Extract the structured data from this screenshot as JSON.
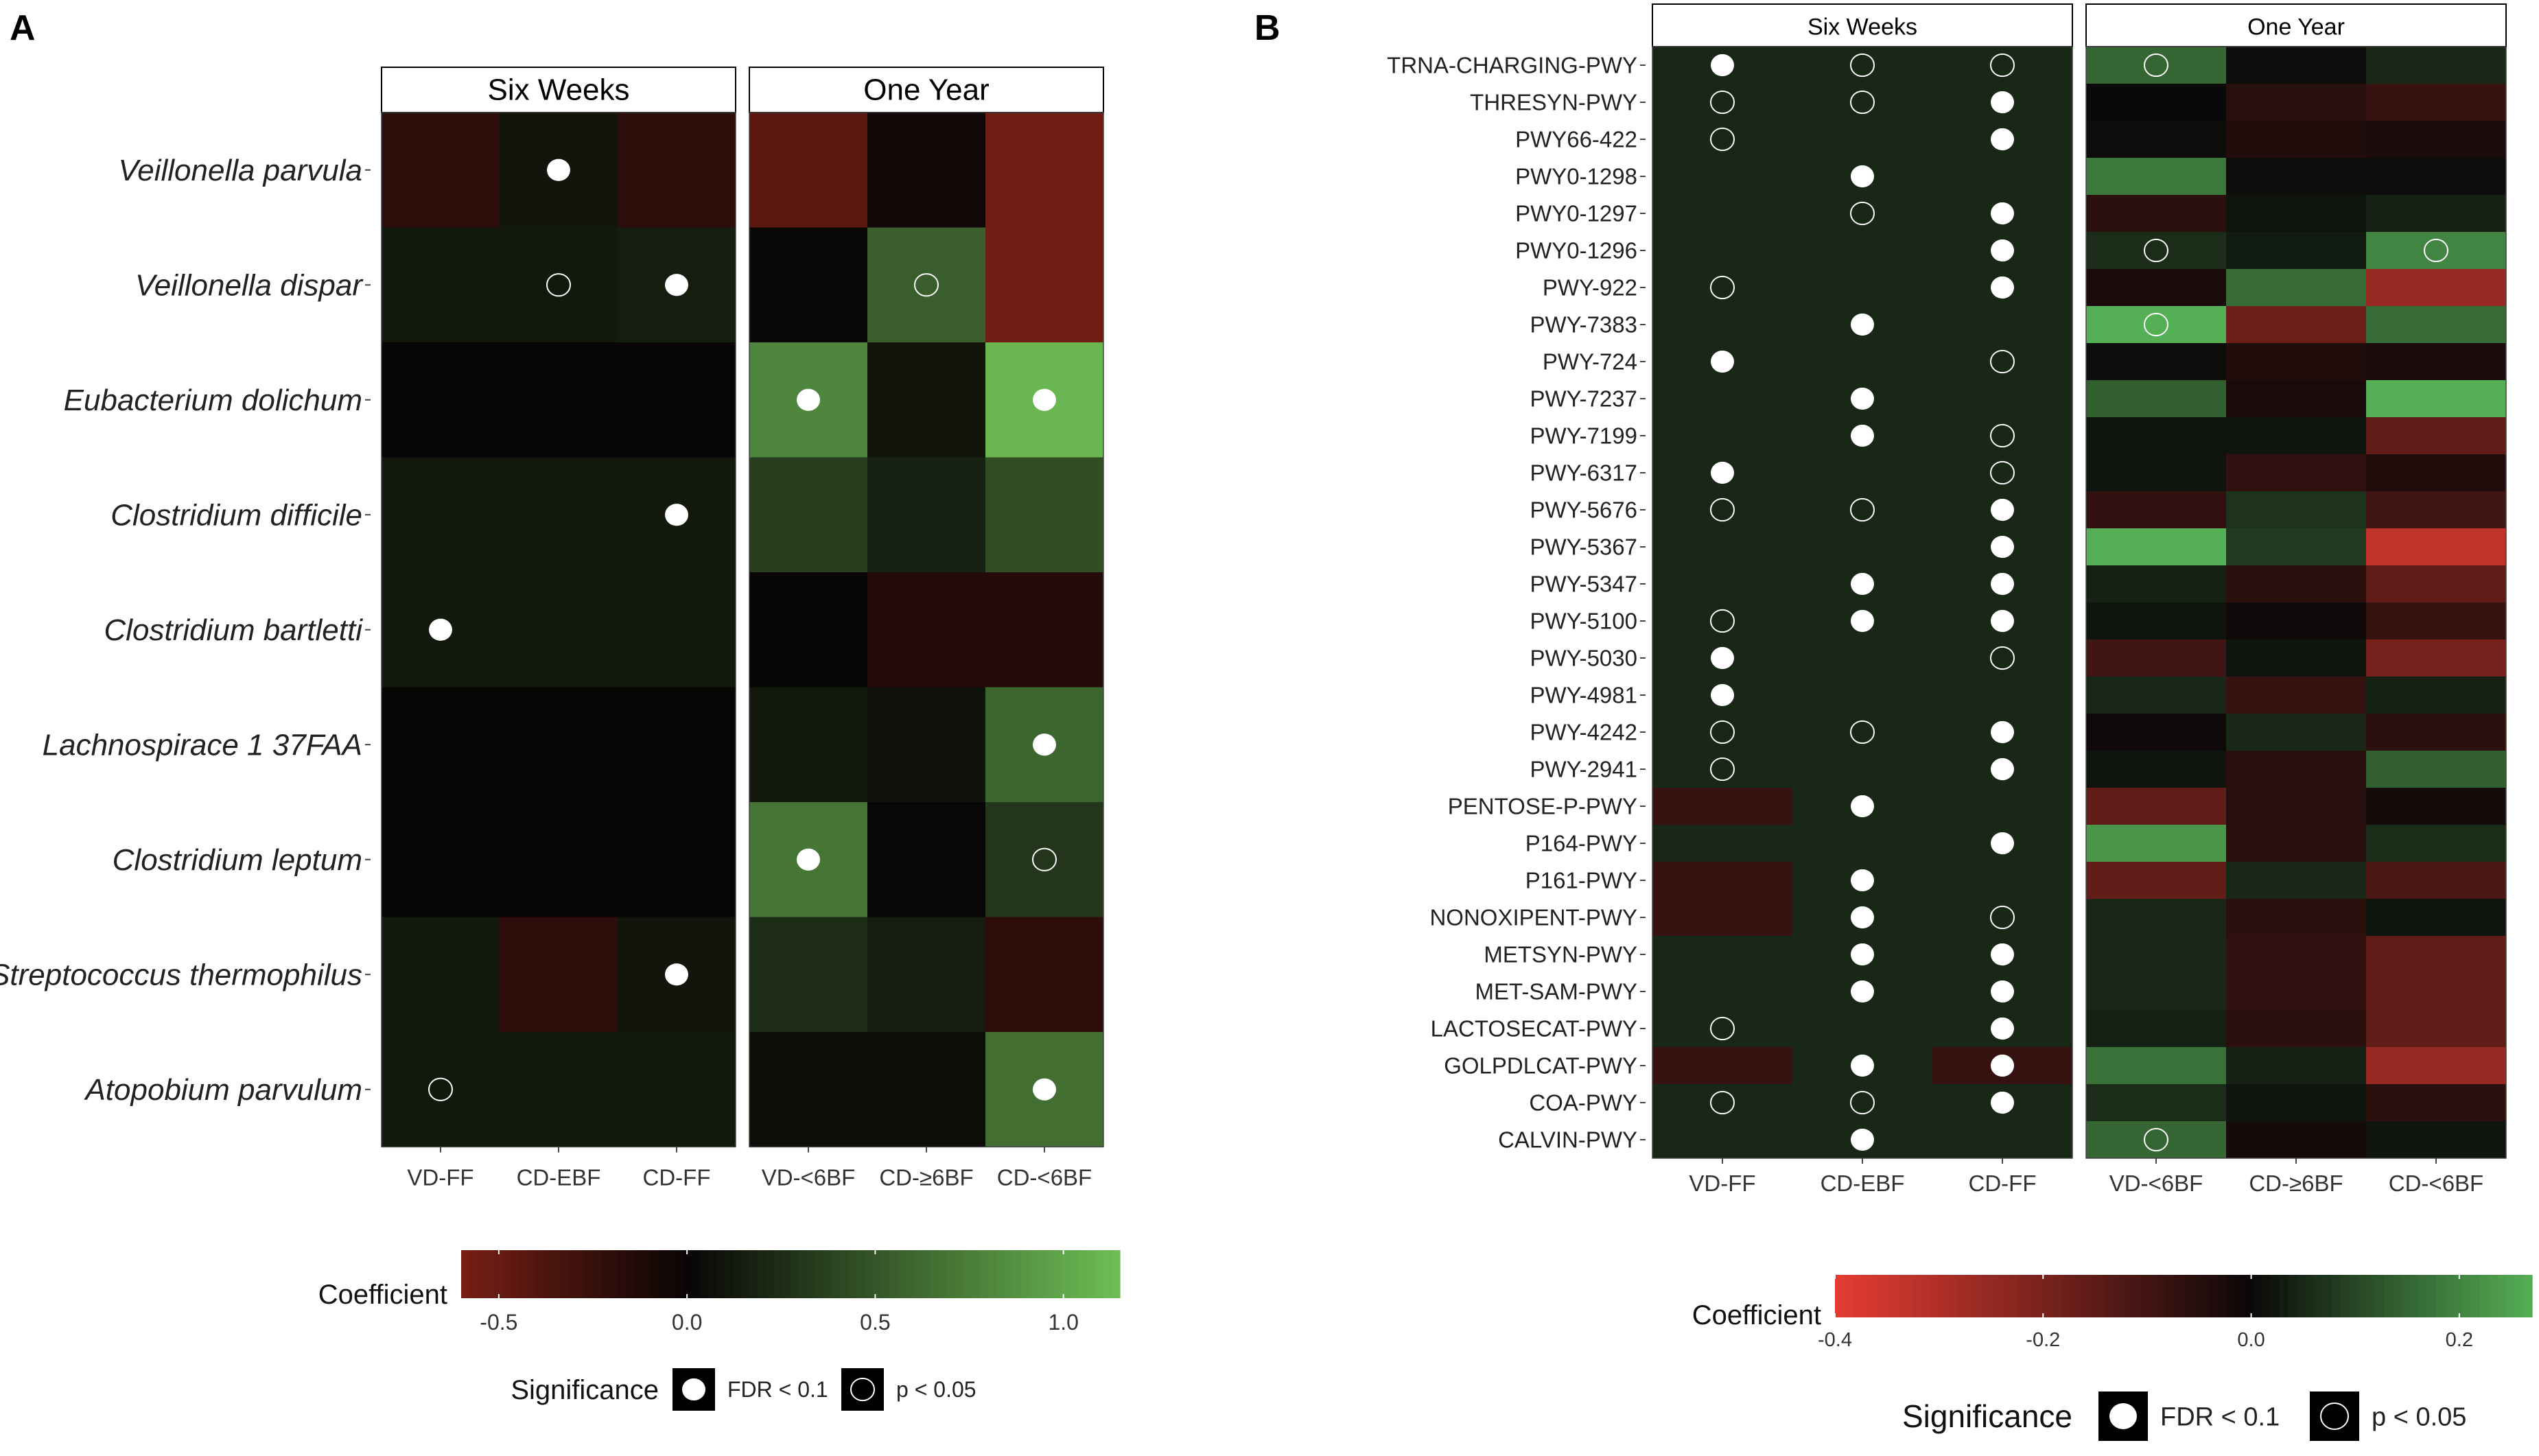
{
  "panels": {
    "a_label": "A",
    "b_label": "B"
  },
  "chart_data": [
    {
      "type": "heatmap",
      "panel": "A",
      "facets": [
        "Six Weeks",
        "One Year"
      ],
      "columns": [
        [
          "VD-FF",
          "CD-EBF",
          "CD-FF"
        ],
        [
          "VD-<6BF",
          "CD-≥6BF",
          "CD-<6BF"
        ]
      ],
      "rows": [
        "Veillonella parvula",
        "Veillonella dispar",
        "Eubacterium dolichum",
        "Clostridium difficile",
        "Clostridium bartletti",
        "Lachnospirace 1 37FAA",
        "Clostridium leptum",
        "Streptococcus thermophilus",
        "Atopobium parvulum"
      ],
      "values": [
        [
          [
            -0.2,
            0.1,
            -0.2
          ],
          [
            -0.45,
            -0.05,
            -0.55
          ]
        ],
        [
          [
            0.12,
            0.12,
            0.15
          ],
          [
            0.02,
            0.55,
            -0.55
          ]
        ],
        [
          [
            0.0,
            0.0,
            0.0
          ],
          [
            0.8,
            0.1,
            1.1
          ]
        ],
        [
          [
            0.12,
            0.12,
            0.12
          ],
          [
            0.35,
            0.18,
            0.45
          ]
        ],
        [
          [
            0.12,
            0.12,
            0.12
          ],
          [
            0.0,
            -0.15,
            -0.15
          ]
        ],
        [
          [
            0.0,
            0.0,
            0.0
          ],
          [
            0.12,
            0.08,
            0.6
          ]
        ],
        [
          [
            0.0,
            0.0,
            0.0
          ],
          [
            0.7,
            0.02,
            0.3
          ]
        ],
        [
          [
            0.12,
            -0.2,
            0.1
          ],
          [
            0.25,
            0.15,
            -0.2
          ]
        ],
        [
          [
            0.12,
            0.12,
            0.12
          ],
          [
            0.05,
            0.05,
            0.65
          ]
        ]
      ],
      "significance": [
        [
          [
            "",
            "FDR",
            ""
          ],
          [
            "",
            "",
            ""
          ]
        ],
        [
          [
            "",
            "p",
            "FDR"
          ],
          [
            "",
            "p",
            ""
          ]
        ],
        [
          [
            "",
            "",
            ""
          ],
          [
            "FDR",
            "",
            "FDR"
          ]
        ],
        [
          [
            "",
            "",
            "FDR"
          ],
          [
            "",
            "",
            ""
          ]
        ],
        [
          [
            "FDR",
            "",
            ""
          ],
          [
            "",
            "",
            ""
          ]
        ],
        [
          [
            "",
            "",
            ""
          ],
          [
            "",
            "",
            "FDR"
          ]
        ],
        [
          [
            "",
            "",
            ""
          ],
          [
            "FDR",
            "",
            "p"
          ]
        ],
        [
          [
            "",
            "",
            "FDR"
          ],
          [
            "",
            "",
            ""
          ]
        ],
        [
          [
            "p",
            "",
            ""
          ],
          [
            "",
            "",
            "FDR"
          ]
        ]
      ],
      "legend": {
        "title": "Coefficient",
        "ticks": [
          "-0.5",
          "0.0",
          "0.5",
          "1.0"
        ],
        "tick_values": [
          -0.5,
          0,
          0.5,
          1.0
        ],
        "range": [
          -0.6,
          1.15
        ],
        "significance_title": "Significance",
        "fdr_label": "FDR < 0.1",
        "p_label": "p < 0.05"
      }
    },
    {
      "type": "heatmap",
      "panel": "B",
      "facets": [
        "Six Weeks",
        "One Year"
      ],
      "columns": [
        [
          "VD-FF",
          "CD-EBF",
          "CD-FF"
        ],
        [
          "VD-<6BF",
          "CD-≥6BF",
          "CD-<6BF"
        ]
      ],
      "rows": [
        "TRNA-CHARGING-PWY",
        "THRESYN-PWY",
        "PWY66-422",
        "PWY0-1298",
        "PWY0-1297",
        "PWY0-1296",
        "PWY-922",
        "PWY-7383",
        "PWY-724",
        "PWY-7237",
        "PWY-7199",
        "PWY-6317",
        "PWY-5676",
        "PWY-5367",
        "PWY-5347",
        "PWY-5100",
        "PWY-5030",
        "PWY-4981",
        "PWY-4242",
        "PWY-2941",
        "PENTOSE-P-PWY",
        "P164-PWY",
        "P161-PWY",
        "NONOXIPENT-PWY",
        "METSYN-PWY",
        "MET-SAM-PWY",
        "LACTOSECAT-PWY",
        "GOLPDLCAT-PWY",
        "COA-PWY",
        "CALVIN-PWY"
      ],
      "values": [
        [
          [
            0.05,
            0.05,
            0.05
          ],
          [
            0.15,
            0.01,
            0.05
          ]
        ],
        [
          [
            0.05,
            0.05,
            0.05
          ],
          [
            0.0,
            -0.05,
            -0.08
          ]
        ],
        [
          [
            0.05,
            0.05,
            0.05
          ],
          [
            0.01,
            -0.04,
            -0.03
          ]
        ],
        [
          [
            0.05,
            0.05,
            0.05
          ],
          [
            0.18,
            0.01,
            0.01
          ]
        ],
        [
          [
            0.05,
            0.05,
            0.05
          ],
          [
            -0.06,
            0.02,
            0.04
          ]
        ],
        [
          [
            0.05,
            0.05,
            0.05
          ],
          [
            0.06,
            0.03,
            0.2
          ]
        ],
        [
          [
            0.05,
            0.05,
            0.05
          ],
          [
            -0.03,
            0.16,
            -0.26
          ]
        ],
        [
          [
            0.05,
            0.05,
            0.05
          ],
          [
            0.27,
            -0.18,
            0.16
          ]
        ],
        [
          [
            0.05,
            0.05,
            0.05
          ],
          [
            0.01,
            -0.04,
            -0.03
          ]
        ],
        [
          [
            0.05,
            0.05,
            0.05
          ],
          [
            0.14,
            -0.03,
            0.27
          ]
        ],
        [
          [
            0.05,
            0.05,
            0.05
          ],
          [
            0.02,
            0.02,
            -0.16
          ]
        ],
        [
          [
            0.05,
            0.05,
            0.05
          ],
          [
            0.02,
            -0.07,
            -0.04
          ]
        ],
        [
          [
            0.05,
            0.05,
            0.05
          ],
          [
            -0.07,
            0.07,
            -0.1
          ]
        ],
        [
          [
            0.05,
            0.05,
            0.05
          ],
          [
            0.27,
            0.08,
            -0.33
          ]
        ],
        [
          [
            0.05,
            0.05,
            0.05
          ],
          [
            0.04,
            -0.06,
            -0.16
          ]
        ],
        [
          [
            0.05,
            0.05,
            0.05
          ],
          [
            0.02,
            -0.01,
            -0.08
          ]
        ],
        [
          [
            0.05,
            0.05,
            0.05
          ],
          [
            -0.1,
            0.02,
            -0.2
          ]
        ],
        [
          [
            0.05,
            0.05,
            0.05
          ],
          [
            0.05,
            -0.08,
            0.04
          ]
        ],
        [
          [
            0.05,
            0.05,
            0.05
          ],
          [
            -0.01,
            0.05,
            -0.06
          ]
        ],
        [
          [
            0.05,
            0.05,
            0.05
          ],
          [
            0.02,
            -0.05,
            0.14
          ]
        ],
        [
          [
            -0.08,
            0.05,
            0.05
          ],
          [
            -0.16,
            -0.05,
            -0.02
          ]
        ],
        [
          [
            0.05,
            0.05,
            0.05
          ],
          [
            0.23,
            -0.05,
            0.06
          ]
        ],
        [
          [
            -0.08,
            0.05,
            0.05
          ],
          [
            -0.16,
            0.05,
            -0.12
          ]
        ],
        [
          [
            -0.08,
            0.05,
            0.05
          ],
          [
            0.05,
            -0.06,
            0.02
          ]
        ],
        [
          [
            0.05,
            0.05,
            0.05
          ],
          [
            0.05,
            -0.07,
            -0.16
          ]
        ],
        [
          [
            0.05,
            0.05,
            0.05
          ],
          [
            0.05,
            -0.07,
            -0.16
          ]
        ],
        [
          [
            0.05,
            0.05,
            0.05
          ],
          [
            0.04,
            -0.06,
            -0.16
          ]
        ],
        [
          [
            -0.08,
            0.05,
            -0.08
          ],
          [
            0.17,
            0.04,
            -0.26
          ]
        ],
        [
          [
            0.05,
            0.05,
            0.05
          ],
          [
            0.06,
            0.02,
            -0.06
          ]
        ],
        [
          [
            0.05,
            0.05,
            0.05
          ],
          [
            0.15,
            -0.02,
            0.02
          ]
        ]
      ],
      "significance": [
        [
          [
            "FDR",
            "p",
            "p"
          ],
          [
            "p",
            "",
            ""
          ]
        ],
        [
          [
            "p",
            "p",
            "FDR"
          ],
          [
            "",
            "",
            ""
          ]
        ],
        [
          [
            "p",
            "",
            "FDR"
          ],
          [
            "",
            "",
            ""
          ]
        ],
        [
          [
            "",
            "FDR",
            ""
          ],
          [
            "",
            "",
            ""
          ]
        ],
        [
          [
            "",
            "p",
            "FDR"
          ],
          [
            "",
            "",
            ""
          ]
        ],
        [
          [
            "",
            "",
            "FDR"
          ],
          [
            "p",
            "",
            "p"
          ]
        ],
        [
          [
            "p",
            "",
            "FDR"
          ],
          [
            "",
            "",
            ""
          ]
        ],
        [
          [
            "",
            "FDR",
            ""
          ],
          [
            "p",
            "",
            ""
          ]
        ],
        [
          [
            "FDR",
            "",
            "p"
          ],
          [
            "",
            "",
            ""
          ]
        ],
        [
          [
            "",
            "FDR",
            ""
          ],
          [
            "",
            "",
            ""
          ]
        ],
        [
          [
            "",
            "FDR",
            "p"
          ],
          [
            "",
            "",
            ""
          ]
        ],
        [
          [
            "FDR",
            "",
            "p"
          ],
          [
            "",
            "",
            ""
          ]
        ],
        [
          [
            "p",
            "p",
            "FDR"
          ],
          [
            "",
            "",
            ""
          ]
        ],
        [
          [
            "",
            "",
            "FDR"
          ],
          [
            "",
            "",
            ""
          ]
        ],
        [
          [
            "",
            "FDR",
            "FDR"
          ],
          [
            "",
            "",
            ""
          ]
        ],
        [
          [
            "p",
            "FDR",
            "FDR"
          ],
          [
            "",
            "",
            ""
          ]
        ],
        [
          [
            "FDR",
            "",
            "p"
          ],
          [
            "",
            "",
            ""
          ]
        ],
        [
          [
            "FDR",
            "",
            ""
          ],
          [
            "",
            "",
            ""
          ]
        ],
        [
          [
            "p",
            "p",
            "FDR"
          ],
          [
            "",
            "",
            ""
          ]
        ],
        [
          [
            "p",
            "",
            "FDR"
          ],
          [
            "",
            "",
            ""
          ]
        ],
        [
          [
            "",
            "FDR",
            ""
          ],
          [
            "",
            "",
            ""
          ]
        ],
        [
          [
            "",
            "",
            "FDR"
          ],
          [
            "",
            "",
            ""
          ]
        ],
        [
          [
            "",
            "FDR",
            ""
          ],
          [
            "",
            "",
            ""
          ]
        ],
        [
          [
            "",
            "FDR",
            "p"
          ],
          [
            "",
            "",
            ""
          ]
        ],
        [
          [
            "",
            "FDR",
            "FDR"
          ],
          [
            "",
            "",
            ""
          ]
        ],
        [
          [
            "",
            "FDR",
            "FDR"
          ],
          [
            "",
            "",
            ""
          ]
        ],
        [
          [
            "p",
            "",
            "FDR"
          ],
          [
            "",
            "",
            ""
          ]
        ],
        [
          [
            "",
            "FDR",
            "FDR"
          ],
          [
            "",
            "",
            ""
          ]
        ],
        [
          [
            "p",
            "p",
            "FDR"
          ],
          [
            "",
            "",
            ""
          ]
        ],
        [
          [
            "",
            "FDR",
            ""
          ],
          [
            "p",
            "",
            ""
          ]
        ]
      ],
      "legend": {
        "title": "Coefficient",
        "ticks": [
          "-0.4",
          "-0.2",
          "0.0",
          "0.2"
        ],
        "tick_values": [
          -0.4,
          -0.2,
          0,
          0.2
        ],
        "range": [
          -0.4,
          0.27
        ],
        "significance_title": "Significance",
        "fdr_label": "FDR < 0.1",
        "p_label": "p < 0.05"
      }
    }
  ]
}
